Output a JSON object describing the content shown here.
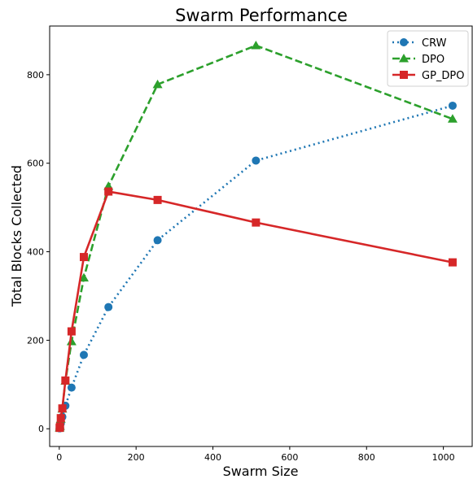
{
  "chart_data": {
    "type": "line",
    "title": "Swarm Performance",
    "xlabel": "Swarm Size",
    "ylabel": "Total Blocks Collected",
    "xlim": [
      -25,
      1075
    ],
    "ylim": [
      -40,
      910
    ],
    "xticks": [
      0,
      200,
      400,
      600,
      800,
      1000
    ],
    "yticks": [
      0,
      200,
      400,
      600,
      800
    ],
    "grid": false,
    "legend_position": "top-right",
    "series": [
      {
        "name": "CRW",
        "color": "#1f77b4",
        "marker": "circle",
        "linestyle": "dotted",
        "x": [
          1,
          2,
          4,
          8,
          16,
          32,
          64,
          128,
          256,
          512,
          1024
        ],
        "y": [
          1,
          3,
          12,
          27,
          52,
          93,
          167,
          275,
          426,
          606,
          730
        ]
      },
      {
        "name": "DPO",
        "color": "#2ca02c",
        "marker": "triangle",
        "linestyle": "dashed",
        "x": [
          1,
          2,
          4,
          8,
          16,
          32,
          64,
          128,
          256,
          512,
          1024
        ],
        "y": [
          2,
          6,
          22,
          45,
          108,
          197,
          341,
          548,
          778,
          866,
          700
        ]
      },
      {
        "name": "GP_DPO",
        "color": "#d62728",
        "marker": "square",
        "linestyle": "solid",
        "x": [
          1,
          2,
          4,
          8,
          16,
          32,
          64,
          128,
          256,
          512,
          1024
        ],
        "y": [
          2,
          5,
          24,
          46,
          109,
          220,
          388,
          536,
          517,
          466,
          376
        ]
      }
    ]
  }
}
